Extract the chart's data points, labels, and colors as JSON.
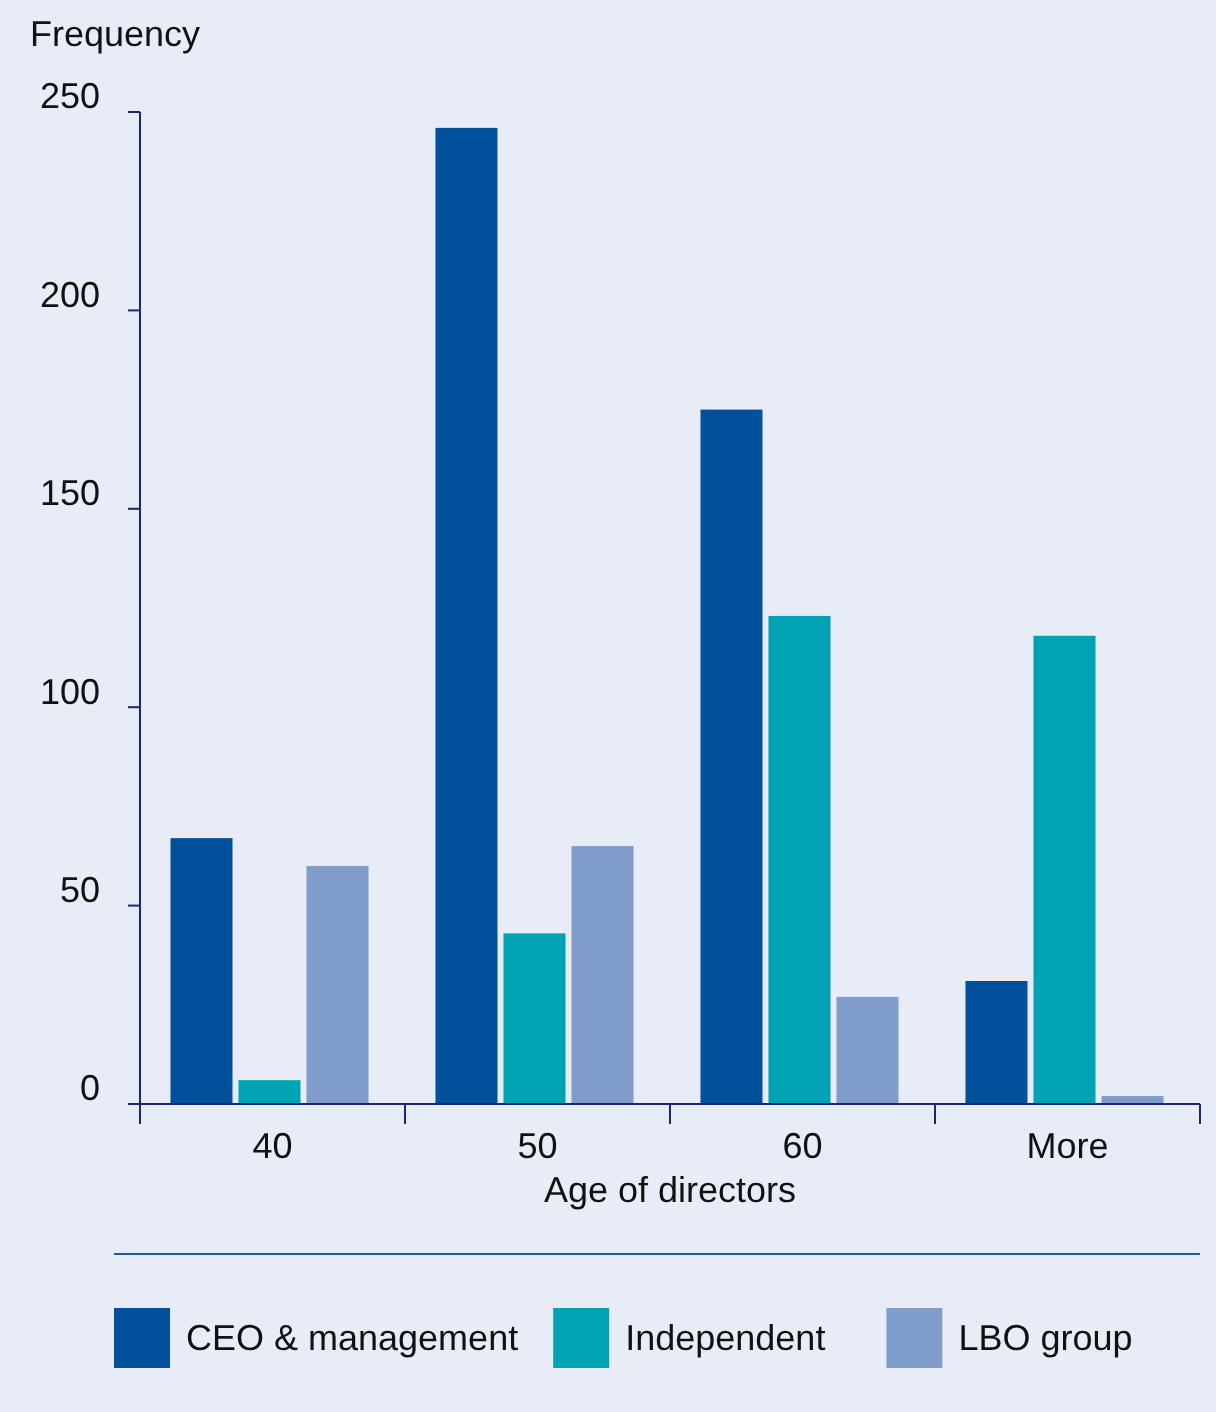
{
  "chart_data": {
    "type": "bar",
    "ylabel": "Frequency",
    "xlabel": "Age of directors",
    "categories": [
      "40",
      "50",
      "60",
      "More"
    ],
    "series": [
      {
        "name": "CEO & management",
        "color": "#00509b",
        "values": [
          67,
          246,
          175,
          31
        ]
      },
      {
        "name": "Independent",
        "color": "#00a3b4",
        "values": [
          6,
          43,
          123,
          118
        ]
      },
      {
        "name": "LBO group",
        "color": "#7f9ccb",
        "values": [
          60,
          65,
          27,
          2
        ]
      }
    ],
    "ylim": [
      0,
      250
    ],
    "yticks": [
      0,
      50,
      100,
      150,
      200,
      250
    ],
    "grid": false,
    "legend": "bottom"
  }
}
